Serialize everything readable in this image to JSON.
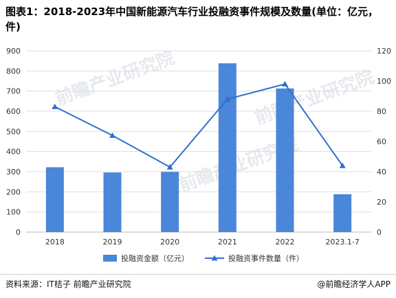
{
  "title": "图表1：2018-2023年中国新能源汽车行业投融资事件规模及数量(单位：亿元，件)",
  "source": "资料来源：IT桔子 前瞻产业研究院",
  "credit": "@前瞻经济学人APP",
  "watermark": "前瞻产业研究院",
  "colors": {
    "bar": "#4a86d9",
    "line": "#2f6fcf",
    "grid": "#dddddd",
    "axis": "#bbbbbb"
  },
  "chart_data": {
    "type": "bar",
    "categories": [
      "2018",
      "2019",
      "2020",
      "2021",
      "2022",
      "2023.1-7"
    ],
    "series": [
      {
        "name": "投融资金额（亿元）",
        "type": "bar",
        "axis": "left",
        "values": [
          322,
          296,
          299,
          838,
          713,
          188
        ]
      },
      {
        "name": "投融资事件数量（件）",
        "type": "line",
        "axis": "right",
        "values": [
          83,
          64,
          43,
          88,
          98,
          44
        ]
      }
    ],
    "y_left": {
      "min": 0,
      "max": 900,
      "ticks": [
        0,
        100,
        200,
        300,
        400,
        500,
        600,
        700,
        800,
        900
      ]
    },
    "y_right": {
      "min": 0,
      "max": 120,
      "ticks": [
        0,
        20,
        40,
        60,
        80,
        100,
        120
      ]
    },
    "grid": true,
    "legend_position": "bottom"
  }
}
